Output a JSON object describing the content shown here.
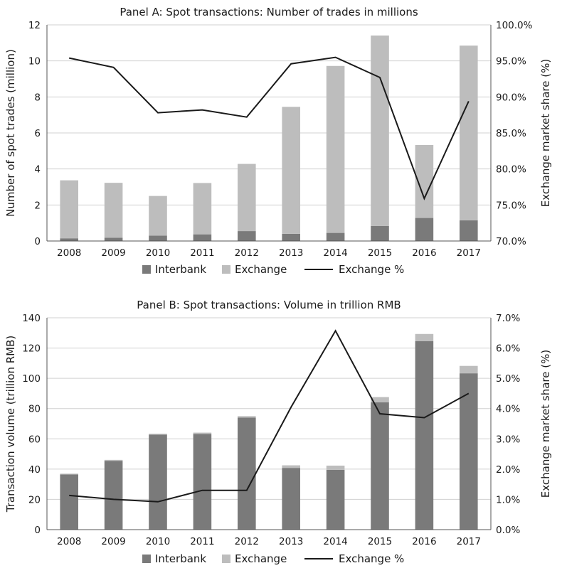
{
  "colors": {
    "interbank": "#7a7a7a",
    "exchange": "#bdbdbd",
    "line": "#1a1a1a",
    "grid": "#d0d0d0",
    "axis": "#555555"
  },
  "chart_data": [
    {
      "type": "bar",
      "stacked": true,
      "title": "Panel A: Spot transactions: Number of trades in millions",
      "ylabel": "Number of spot trades (million)",
      "y2label": "Exchange market share (%)",
      "categories": [
        "2008",
        "2009",
        "2010",
        "2011",
        "2012",
        "2013",
        "2014",
        "2015",
        "2016",
        "2017"
      ],
      "ylim": [
        0,
        12
      ],
      "yticks": [
        0,
        2,
        4,
        6,
        8,
        10,
        12
      ],
      "ytick_labels": [
        "0",
        "2",
        "4",
        "6",
        "8",
        "10",
        "12"
      ],
      "y2lim": [
        70,
        100
      ],
      "y2ticks": [
        70,
        75,
        80,
        85,
        90,
        95,
        100
      ],
      "y2tick_labels": [
        "70.0%",
        "75.0%",
        "80.0%",
        "85.0%",
        "90.0%",
        "95.0%",
        "100.0%"
      ],
      "grid": true,
      "legend_position": "bottom",
      "series": [
        {
          "name": "Interbank",
          "type": "bar",
          "axis": "left",
          "values": [
            0.15,
            0.18,
            0.3,
            0.37,
            0.55,
            0.4,
            0.45,
            0.83,
            1.28,
            1.15
          ]
        },
        {
          "name": "Exchange",
          "type": "bar",
          "axis": "left",
          "values": [
            3.22,
            3.05,
            2.2,
            2.85,
            3.73,
            7.05,
            9.27,
            10.58,
            4.05,
            9.7
          ]
        },
        {
          "name": "Exchange %",
          "type": "line",
          "axis": "right",
          "values": [
            95.4,
            94.1,
            87.8,
            88.2,
            87.2,
            94.6,
            95.5,
            92.7,
            75.9,
            89.4
          ]
        }
      ]
    },
    {
      "type": "bar",
      "stacked": true,
      "title": "Panel B: Spot transactions: Volume in trillion RMB",
      "ylabel": "Transaction volume (trillion RMB)",
      "y2label": "Exchange market share (%)",
      "categories": [
        "2008",
        "2009",
        "2010",
        "2011",
        "2012",
        "2013",
        "2014",
        "2015",
        "2016",
        "2017"
      ],
      "ylim": [
        0,
        140
      ],
      "yticks": [
        0,
        20,
        40,
        60,
        80,
        100,
        120,
        140
      ],
      "ytick_labels": [
        "0",
        "20",
        "40",
        "60",
        "80",
        "100",
        "120",
        "140"
      ],
      "y2lim": [
        0,
        7
      ],
      "y2ticks": [
        0,
        1,
        2,
        3,
        4,
        5,
        6,
        7
      ],
      "y2tick_labels": [
        "0.0%",
        "1.0%",
        "2.0%",
        "3.0%",
        "4.0%",
        "5.0%",
        "6.0%",
        "7.0%"
      ],
      "grid": true,
      "legend_position": "bottom",
      "series": [
        {
          "name": "Interbank",
          "type": "bar",
          "axis": "left",
          "values": [
            36.5,
            45.5,
            62.8,
            63.2,
            74.0,
            40.8,
            39.5,
            84.2,
            124.5,
            103.3
          ]
        },
        {
          "name": "Exchange",
          "type": "bar",
          "axis": "left",
          "values": [
            0.5,
            0.6,
            0.6,
            0.9,
            1.0,
            1.7,
            2.8,
            3.4,
            4.8,
            4.9
          ]
        },
        {
          "name": "Exchange %",
          "type": "line",
          "axis": "right",
          "values": [
            1.13,
            1.0,
            0.92,
            1.3,
            1.3,
            4.05,
            6.57,
            3.83,
            3.7,
            4.5
          ]
        }
      ]
    }
  ]
}
